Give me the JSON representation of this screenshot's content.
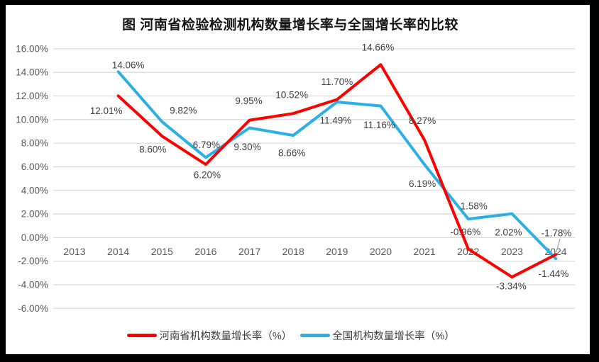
{
  "title": "图  河南省检验检测机构数量增长率与全国增长率的比较",
  "legend": [
    {
      "label": "河南省机构数量增长率（%）",
      "color": "#FF0000"
    },
    {
      "label": "全国机构数量增长率（%）",
      "color": "#2BB0E6"
    }
  ],
  "colors": {
    "frame": "#000000",
    "background": "#FFFFFF",
    "gridline": "#DCDCDC",
    "axis_text": "#595959",
    "data_label_text": "#404040",
    "leader_line": "#A6A6A6"
  },
  "chart_data": {
    "type": "line",
    "title": "图  河南省检验检测机构数量增长率与全国增长率的比较",
    "categories": [
      "2013",
      "2014",
      "2015",
      "2016",
      "2017",
      "2018",
      "2019",
      "2020",
      "2021",
      "2022",
      "2023",
      "2024"
    ],
    "series": [
      {
        "name": "河南省机构数量增长率（%）",
        "color": "#FF0000",
        "values": [
          null,
          12.01,
          8.6,
          6.2,
          9.95,
          10.52,
          11.7,
          14.66,
          8.27,
          -0.96,
          -3.34,
          -1.44
        ],
        "point_labels": [
          null,
          "12.01%",
          "8.60%",
          "6.20%",
          "9.95%",
          "10.52%",
          "11.70%",
          "14.66%",
          "8.27%",
          "-0.96%",
          "-3.34%",
          "-1.44%"
        ],
        "label_offsets": [
          null,
          [
            -17,
            21
          ],
          [
            -13,
            19
          ],
          [
            2,
            15
          ],
          [
            -1,
            -27
          ],
          [
            -2,
            -26
          ],
          [
            0,
            -25
          ],
          [
            -4,
            -24
          ],
          [
            -3,
            -27
          ],
          [
            -4,
            -24
          ],
          [
            -1,
            13
          ],
          [
            -3,
            27
          ]
        ]
      },
      {
        "name": "全国机构数量增长率（%）",
        "color": "#2BB0E6",
        "values": [
          null,
          14.06,
          9.82,
          6.79,
          9.3,
          8.66,
          11.49,
          11.16,
          6.19,
          1.58,
          2.02,
          -1.78
        ],
        "point_labels": [
          null,
          "14.06%",
          "9.82%",
          "6.79%",
          "9.30%",
          "8.66%",
          "11.49%",
          "11.16%",
          "6.19%",
          "1.58%",
          "2.02%",
          "-1.78%"
        ],
        "label_offsets": [
          null,
          [
            14,
            -9
          ],
          [
            30,
            -16
          ],
          [
            1,
            -18
          ],
          [
            -3,
            27
          ],
          [
            -2,
            25
          ],
          [
            -2,
            26
          ],
          [
            -2,
            27
          ],
          [
            -3,
            27
          ],
          [
            8,
            -18
          ],
          [
            -5,
            26
          ],
          [
            1,
            -36
          ]
        ]
      }
    ],
    "ylim": [
      -6,
      16
    ],
    "ytick_step": 2,
    "ytick_labels": [
      "16.00%",
      "14.00%",
      "12.00%",
      "10.00%",
      "8.00%",
      "6.00%",
      "4.00%",
      "2.00%",
      "0.00%",
      "-2.00%",
      "-4.00%",
      "-6.00%"
    ],
    "grid": true,
    "legend_position": "bottom",
    "annotations": {
      "leader_lines": [
        {
          "x1": 789,
          "y1": 337,
          "x2": 784,
          "y2": 356
        }
      ]
    }
  }
}
